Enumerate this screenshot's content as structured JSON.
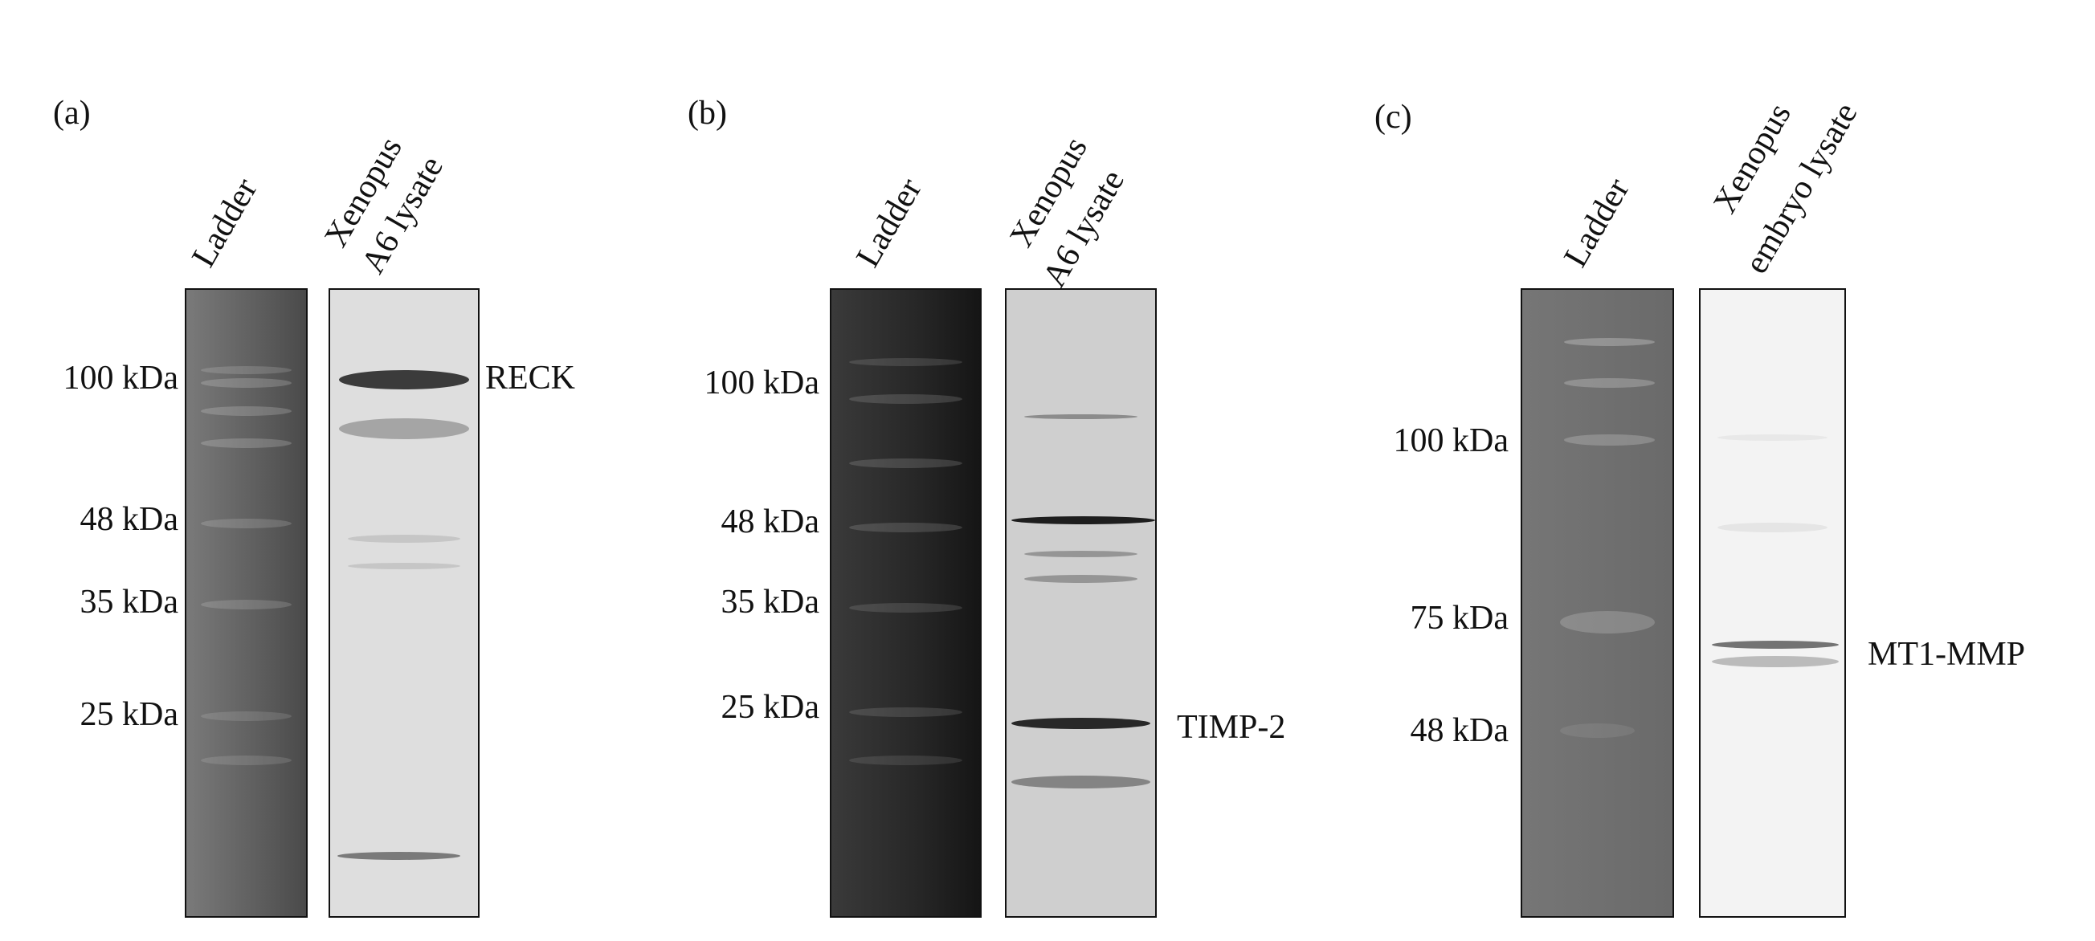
{
  "panels": [
    {
      "label": "(a)",
      "lanes": [
        "Ladder",
        "Xenopus",
        "A6 lysate"
      ],
      "markers": [
        "100 kDa",
        "48 kDa",
        "35 kDa",
        "25 kDa"
      ],
      "target": "RECK"
    },
    {
      "label": "(b)",
      "lanes": [
        "Ladder",
        "Xenopus",
        "A6 lysate"
      ],
      "markers": [
        "100 kDa",
        "48 kDa",
        "35 kDa",
        "25 kDa"
      ],
      "target": "TIMP-2"
    },
    {
      "label": "(c)",
      "lanes": [
        "Ladder",
        "Xenopus",
        "embryo lysate"
      ],
      "markers": [
        "100 kDa",
        "75 kDa",
        "48 kDa"
      ],
      "target": "MT1-MMP"
    }
  ]
}
